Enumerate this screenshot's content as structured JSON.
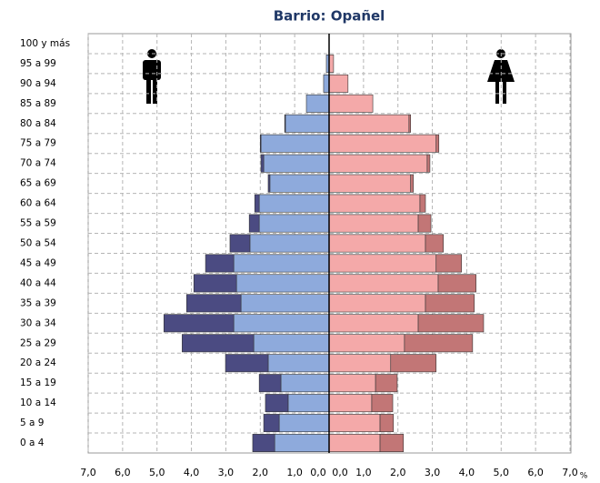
{
  "chart_data": {
    "type": "pyramid",
    "title": "Barrio: Opañel",
    "categories": [
      "0 a 4",
      "5 a 9",
      "10 a 14",
      "15 a 19",
      "20 a 24",
      "25 a 29",
      "30 a 34",
      "35 a 39",
      "40 a 44",
      "45 a 49",
      "50 a 54",
      "55 a 59",
      "60 a 64",
      "65 a 69",
      "70 a 74",
      "75 a 79",
      "80 a 84",
      "85 a 89",
      "90 a 94",
      "95 a 99",
      "100 y más"
    ],
    "series": [
      {
        "side": "left",
        "color": "#8eaadc",
        "values": [
          1.58,
          1.45,
          1.19,
          1.4,
          1.77,
          2.19,
          2.77,
          2.56,
          2.69,
          2.77,
          2.3,
          2.03,
          2.03,
          1.72,
          1.9,
          1.98,
          1.27,
          0.66,
          0.16,
          0.08,
          0
        ]
      },
      {
        "side": "left",
        "color": "#4b4b82",
        "values": [
          0.64,
          0.45,
          0.66,
          0.63,
          1.24,
          2.08,
          2.03,
          1.58,
          1.24,
          0.82,
          0.58,
          0.29,
          0.13,
          0.05,
          0.08,
          0.02,
          0.02,
          0,
          0,
          0,
          0
        ]
      },
      {
        "side": "right",
        "color": "#f4a9a9",
        "values": [
          1.48,
          1.48,
          1.24,
          1.35,
          1.79,
          2.19,
          2.59,
          2.8,
          3.17,
          3.11,
          2.8,
          2.59,
          2.64,
          2.37,
          2.85,
          3.11,
          2.32,
          1.27,
          0.55,
          0.13,
          0
        ]
      },
      {
        "side": "right",
        "color": "#c27676",
        "values": [
          0.68,
          0.39,
          0.61,
          0.63,
          1.32,
          1.98,
          1.9,
          1.42,
          1.1,
          0.74,
          0.52,
          0.37,
          0.16,
          0.08,
          0.08,
          0.08,
          0.05,
          0,
          0,
          0,
          0
        ]
      }
    ],
    "xlim": [
      0,
      7
    ],
    "xticks": [
      {
        "value": 0,
        "label": "0,0"
      },
      {
        "value": 1,
        "label": "1,0"
      },
      {
        "value": 2,
        "label": "2,0"
      },
      {
        "value": 3,
        "label": "3,0"
      },
      {
        "value": 4,
        "label": "4,0"
      },
      {
        "value": 5,
        "label": "5,0"
      },
      {
        "value": 6,
        "label": "6,0"
      },
      {
        "value": 7,
        "label": "7,0"
      }
    ],
    "x_unit": "%",
    "grid": true
  }
}
